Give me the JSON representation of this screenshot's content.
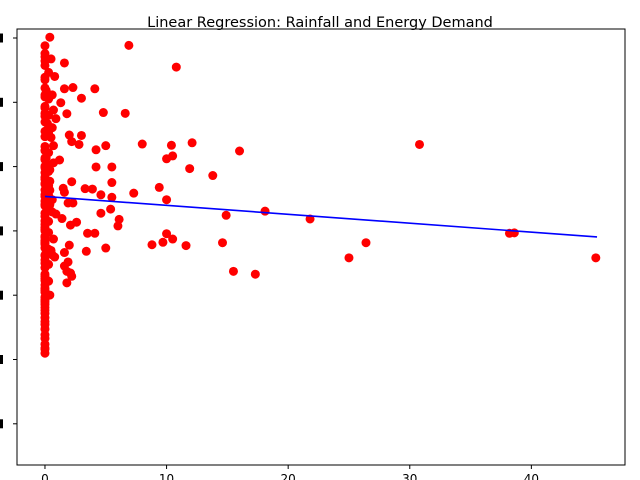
{
  "chart_data": {
    "type": "scatter",
    "title": "Linear Regression: Rainfall and Energy Demand",
    "xlabel": "",
    "ylabel": "",
    "x_ticks": [
      0,
      10,
      20,
      30,
      40
    ],
    "x_tick_labels": [
      "0",
      "10",
      "20",
      "30",
      "40"
    ],
    "y_tick_count": 7,
    "xlim": [
      -2.3,
      47.7
    ],
    "ylim": [
      -4.0,
      102.5
    ],
    "grid": false,
    "legend": "none",
    "scatter_color": "#ff0000",
    "line_color": "#0000ff",
    "regression_line": {
      "x": [
        0.0,
        45.4
      ],
      "y": [
        61.6,
        51.7
      ]
    },
    "points": [
      [
        0.4,
        100.5
      ],
      [
        6.9,
        98.5
      ],
      [
        0.0,
        98.4
      ],
      [
        0.0,
        96.5
      ],
      [
        0.0,
        95.7
      ],
      [
        0.5,
        95.2
      ],
      [
        0.0,
        94.7
      ],
      [
        1.6,
        94.2
      ],
      [
        0.0,
        93.6
      ],
      [
        10.8,
        93.2
      ],
      [
        0.3,
        91.9
      ],
      [
        0.8,
        90.9
      ],
      [
        0.0,
        90.7
      ],
      [
        0.0,
        90.1
      ],
      [
        2.3,
        88.2
      ],
      [
        0.0,
        88.1
      ],
      [
        1.6,
        87.9
      ],
      [
        4.1,
        87.9
      ],
      [
        0.1,
        87.5
      ],
      [
        0.0,
        86.4
      ],
      [
        0.6,
        86.4
      ],
      [
        0.0,
        85.9
      ],
      [
        3.0,
        85.6
      ],
      [
        0.3,
        85.4
      ],
      [
        1.3,
        84.5
      ],
      [
        0.0,
        83.6
      ],
      [
        0.0,
        83.2
      ],
      [
        0.7,
        82.7
      ],
      [
        4.8,
        82.1
      ],
      [
        6.6,
        81.9
      ],
      [
        0.0,
        81.9
      ],
      [
        1.8,
        81.8
      ],
      [
        0.3,
        81.4
      ],
      [
        0.0,
        81.2
      ],
      [
        0.9,
        80.6
      ],
      [
        0.0,
        79.8
      ],
      [
        0.2,
        79.4
      ],
      [
        0.6,
        78.4
      ],
      [
        0.0,
        77.5
      ],
      [
        0.3,
        77.1
      ],
      [
        2.0,
        76.6
      ],
      [
        3.0,
        76.5
      ],
      [
        0.0,
        76.2
      ],
      [
        0.5,
        76.0
      ],
      [
        2.2,
        75.0
      ],
      [
        12.1,
        74.7
      ],
      [
        8.0,
        74.4
      ],
      [
        2.8,
        74.3
      ],
      [
        30.8,
        74.3
      ],
      [
        10.4,
        74.1
      ],
      [
        0.7,
        74.0
      ],
      [
        5.0,
        74.0
      ],
      [
        0.0,
        73.8
      ],
      [
        4.2,
        73.0
      ],
      [
        0.0,
        72.8
      ],
      [
        16.0,
        72.7
      ],
      [
        0.3,
        72.3
      ],
      [
        10.5,
        71.5
      ],
      [
        0.0,
        71.0
      ],
      [
        0.1,
        71.0
      ],
      [
        10.0,
        70.8
      ],
      [
        0.0,
        70.6
      ],
      [
        1.2,
        70.5
      ],
      [
        0.7,
        69.8
      ],
      [
        0.2,
        69.5
      ],
      [
        0.0,
        69.0
      ],
      [
        4.2,
        68.8
      ],
      [
        5.5,
        68.8
      ],
      [
        0.0,
        68.6
      ],
      [
        11.9,
        68.4
      ],
      [
        0.4,
        68.1
      ],
      [
        0.3,
        67.7
      ],
      [
        0.0,
        67.4
      ],
      [
        13.8,
        66.7
      ],
      [
        0.0,
        66.3
      ],
      [
        0.0,
        65.8
      ],
      [
        0.4,
        65.3
      ],
      [
        2.2,
        65.2
      ],
      [
        5.5,
        65.0
      ],
      [
        0.0,
        64.8
      ],
      [
        0.0,
        64.6
      ],
      [
        0.3,
        64.2
      ],
      [
        9.4,
        63.8
      ],
      [
        1.5,
        63.6
      ],
      [
        3.3,
        63.5
      ],
      [
        3.9,
        63.4
      ],
      [
        0.0,
        63.2
      ],
      [
        0.4,
        63.1
      ],
      [
        1.6,
        62.6
      ],
      [
        7.3,
        62.4
      ],
      [
        0.0,
        62.1
      ],
      [
        4.6,
        62.0
      ],
      [
        0.3,
        61.8
      ],
      [
        0.0,
        61.6
      ],
      [
        5.5,
        61.4
      ],
      [
        0.6,
        60.8
      ],
      [
        10.0,
        60.8
      ],
      [
        0.0,
        60.5
      ],
      [
        0.1,
        60.1
      ],
      [
        1.9,
        60.0
      ],
      [
        2.3,
        60.0
      ],
      [
        0.0,
        59.7
      ],
      [
        0.4,
        59.6
      ],
      [
        0.0,
        59.3
      ],
      [
        5.4,
        58.5
      ],
      [
        0.4,
        58.3
      ],
      [
        18.1,
        58.0
      ],
      [
        0.6,
        57.8
      ],
      [
        0.0,
        57.5
      ],
      [
        4.6,
        57.5
      ],
      [
        0.9,
        57.3
      ],
      [
        14.9,
        57.0
      ],
      [
        0.0,
        56.7
      ],
      [
        1.4,
        56.2
      ],
      [
        21.8,
        56.1
      ],
      [
        6.1,
        56.0
      ],
      [
        0.0,
        55.6
      ],
      [
        0.3,
        55.5
      ],
      [
        2.6,
        55.3
      ],
      [
        0.0,
        54.8
      ],
      [
        2.1,
        54.6
      ],
      [
        6.0,
        54.4
      ],
      [
        0.0,
        54.1
      ],
      [
        0.0,
        53.6
      ],
      [
        0.0,
        53.2
      ],
      [
        0.3,
        52.8
      ],
      [
        3.5,
        52.6
      ],
      [
        4.1,
        52.6
      ],
      [
        38.2,
        52.6
      ],
      [
        38.6,
        52.7
      ],
      [
        10.0,
        52.5
      ],
      [
        0.0,
        51.9
      ],
      [
        0.0,
        51.6
      ],
      [
        0.7,
        51.2
      ],
      [
        10.5,
        51.2
      ],
      [
        0.0,
        50.9
      ],
      [
        0.0,
        50.6
      ],
      [
        0.0,
        50.4
      ],
      [
        0.0,
        50.2
      ],
      [
        9.7,
        50.4
      ],
      [
        14.6,
        50.3
      ],
      [
        26.4,
        50.3
      ],
      [
        0.0,
        49.9
      ],
      [
        8.8,
        49.8
      ],
      [
        2.0,
        49.7
      ],
      [
        11.6,
        49.6
      ],
      [
        0.0,
        49.0
      ],
      [
        5.0,
        49.0
      ],
      [
        0.3,
        48.7
      ],
      [
        0.5,
        48.4
      ],
      [
        3.4,
        48.2
      ],
      [
        1.6,
        47.9
      ],
      [
        0.0,
        47.3
      ],
      [
        0.6,
        47.3
      ],
      [
        0.0,
        47.1
      ],
      [
        0.8,
        46.8
      ],
      [
        25.0,
        46.6
      ],
      [
        45.3,
        46.6
      ],
      [
        0.0,
        46.1
      ],
      [
        1.9,
        45.6
      ],
      [
        0.0,
        45.3
      ],
      [
        0.3,
        45.0
      ],
      [
        1.6,
        44.6
      ],
      [
        0.0,
        44.2
      ],
      [
        15.5,
        43.3
      ],
      [
        1.8,
        43.3
      ],
      [
        2.1,
        42.9
      ],
      [
        0.0,
        42.6
      ],
      [
        17.3,
        42.6
      ],
      [
        0.0,
        42.1
      ],
      [
        2.2,
        42.1
      ],
      [
        0.0,
        41.5
      ],
      [
        0.0,
        41.0
      ],
      [
        0.3,
        40.9
      ],
      [
        1.8,
        40.5
      ],
      [
        0.0,
        40.0
      ],
      [
        0.0,
        39.2
      ],
      [
        0.0,
        38.7
      ],
      [
        0.0,
        38.2
      ],
      [
        0.4,
        37.5
      ],
      [
        0.0,
        37.0
      ],
      [
        0.0,
        36.3
      ],
      [
        0.0,
        35.8
      ],
      [
        0.0,
        35.2
      ],
      [
        0.0,
        34.5
      ],
      [
        0.0,
        33.8
      ],
      [
        0.0,
        33.0
      ],
      [
        0.0,
        32.0
      ],
      [
        0.0,
        31.0
      ],
      [
        0.0,
        30.3
      ],
      [
        0.0,
        29.2
      ],
      [
        0.0,
        27.8
      ],
      [
        0.0,
        26.9
      ],
      [
        0.0,
        25.5
      ],
      [
        0.0,
        24.6
      ],
      [
        0.0,
        24.3
      ],
      [
        0.0,
        23.3
      ]
    ]
  }
}
